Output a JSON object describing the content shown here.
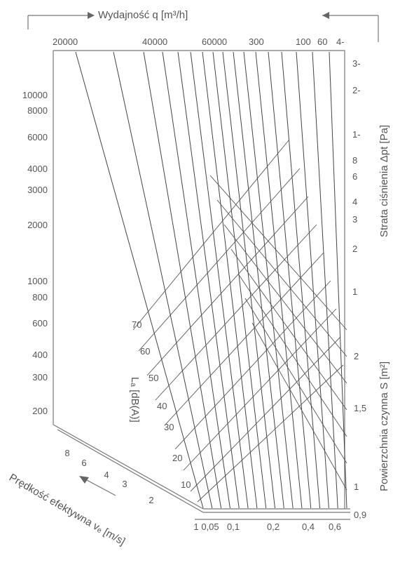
{
  "chart_data": {
    "type": "nomogram",
    "top_axis_label": "Wydajność q [m³/h]",
    "top_ticks": [
      "20000",
      "40000",
      "60000",
      "300",
      "100",
      "60",
      "4-"
    ],
    "left_ticks": [
      "10000",
      "8000",
      "6000",
      "4000",
      "3000",
      "2000",
      "1000",
      "800",
      "600",
      "400",
      "300",
      "200"
    ],
    "right_pressure_label": "Strata ciśnienia Δpt [Pa]",
    "right_pressure_ticks": [
      "3-",
      "2-",
      "1-",
      "8",
      "6",
      "4",
      "3",
      "2",
      "1"
    ],
    "right_area_label": "Powierzchnia czynna S [m²]",
    "right_area_ticks": [
      "2",
      "1,5",
      "1",
      "0,9"
    ],
    "level_axis_label": "Lₐ [dB(A)]",
    "level_ticks": [
      "70",
      "60",
      "50",
      "40",
      "30",
      "20",
      "10"
    ],
    "velocity_label": "Prędkość efektywna vₑ [m/s]",
    "velocity_ticks": [
      "8",
      "6",
      "4",
      "3",
      "2"
    ],
    "bottom_ticks": [
      "1",
      "0,05",
      "0,1",
      "0,2",
      "0,4",
      "0,6"
    ]
  }
}
